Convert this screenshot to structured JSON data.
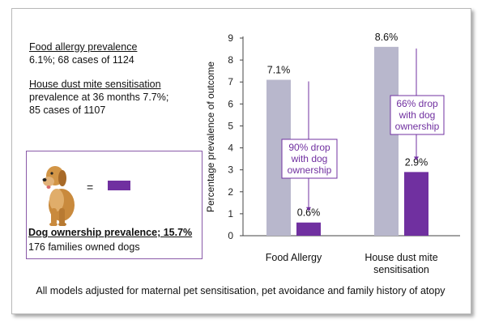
{
  "left_panel": {
    "food_allergy_title": "Food allergy prevalence",
    "food_allergy_value": "6.1%; 68 cases of 1124",
    "hdm_title": "House dust mite sensitisation",
    "hdm_line1": "prevalence at 36 months 7.7%;",
    "hdm_line2": "85 cases of 1107",
    "equals": "=",
    "dog_title": "Dog ownership prevalence; 15.7%",
    "dog_sub": "176 families owned dogs"
  },
  "colors": {
    "no_dog": "#b8b7cc",
    "dog": "#7030a0",
    "annotation": "#7030a0"
  },
  "icons": {
    "dog": "golden-retriever-dog-icon"
  },
  "chart_data": {
    "type": "bar",
    "categories": [
      "Food Allergy",
      "House dust mite\nsensitisation"
    ],
    "category_lines": [
      [
        "Food Allergy"
      ],
      [
        "House dust mite",
        "sensitisation"
      ]
    ],
    "series": [
      {
        "values": [
          7.1,
          8.6
        ],
        "color": "#b8b7cc",
        "labels": [
          "7.1%",
          "8.6%"
        ]
      },
      {
        "values": [
          0.6,
          2.9
        ],
        "color": "#7030a0",
        "labels": [
          "0.6%",
          "2.9%"
        ]
      }
    ],
    "ylabel": "Percentage prevalence of outcome",
    "ylim": [
      0,
      9
    ],
    "yticks": [
      0,
      1,
      2,
      3,
      4,
      5,
      6,
      7,
      8,
      9
    ],
    "grid": false,
    "annotations": [
      {
        "lines": [
          "90% drop",
          "with dog",
          "ownership"
        ]
      },
      {
        "lines": [
          "66% drop",
          "with dog",
          "ownership"
        ]
      }
    ]
  },
  "footnote": "All models adjusted for maternal pet sensitisation, pet avoidance and family history of atopy"
}
